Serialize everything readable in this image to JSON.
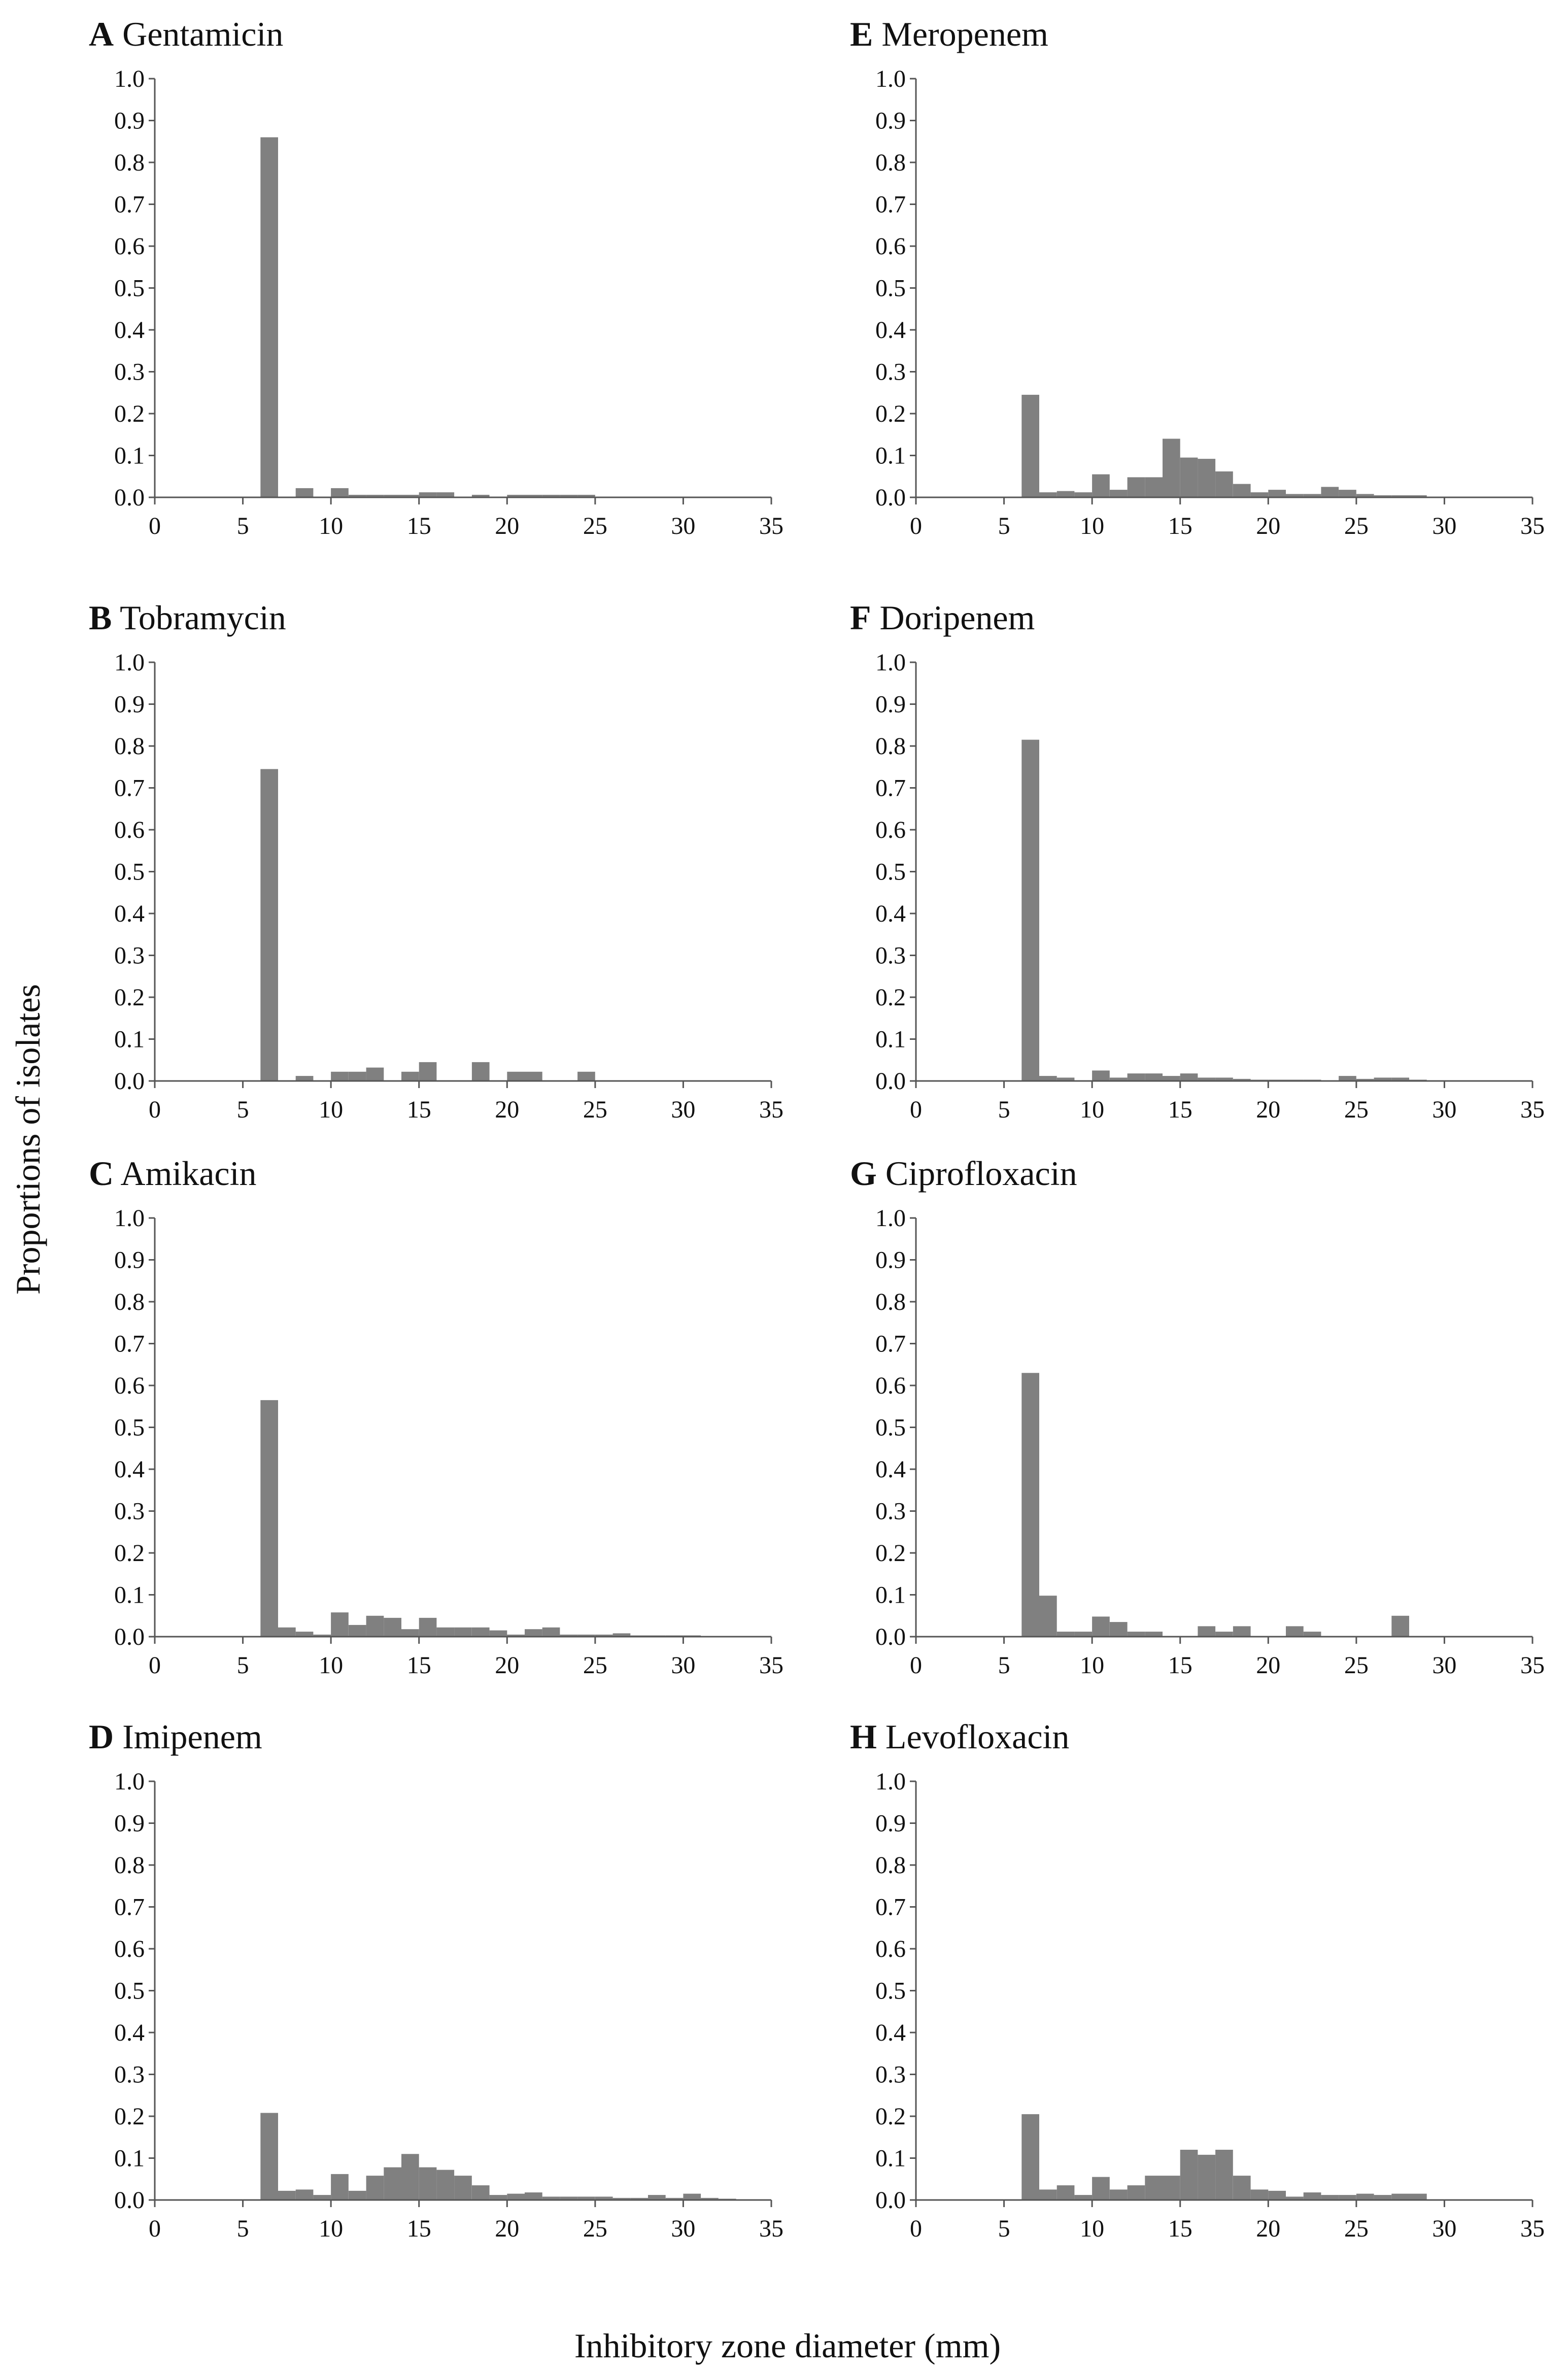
{
  "figure": {
    "y_axis_label": "Proportions of isolates",
    "x_axis_label": "Inhibitory zone diameter (mm)"
  },
  "style": {
    "bar_color": "#808080",
    "axis_color": "#555555",
    "text_color": "#111111"
  },
  "chart_data": [
    {
      "type": "bar",
      "letter": "A",
      "antibiotic": "Gentamicin",
      "xlim": [
        0,
        35
      ],
      "ylim": [
        0,
        1.0
      ],
      "xticks": [
        "0",
        "5",
        "10",
        "15",
        "20",
        "25",
        "30",
        "35"
      ],
      "yticks": [
        "0.0",
        "0.1",
        "0.2",
        "0.3",
        "0.4",
        "0.5",
        "0.6",
        "0.7",
        "0.8",
        "0.9",
        "1.0"
      ],
      "bin_width": 1,
      "bins": [
        [
          6,
          0.86
        ],
        [
          8,
          0.022
        ],
        [
          10,
          0.022
        ],
        [
          11,
          0.006
        ],
        [
          12,
          0.006
        ],
        [
          13,
          0.006
        ],
        [
          14,
          0.006
        ],
        [
          15,
          0.012
        ],
        [
          16,
          0.012
        ],
        [
          18,
          0.006
        ],
        [
          20,
          0.006
        ],
        [
          21,
          0.006
        ],
        [
          22,
          0.006
        ],
        [
          23,
          0.006
        ],
        [
          24,
          0.006
        ]
      ]
    },
    {
      "type": "bar",
      "letter": "E",
      "antibiotic": "Meropenem",
      "xlim": [
        0,
        35
      ],
      "ylim": [
        0,
        1.0
      ],
      "xticks": [
        "0",
        "5",
        "10",
        "15",
        "20",
        "25",
        "30",
        "35"
      ],
      "yticks": [
        "0.0",
        "0.1",
        "0.2",
        "0.3",
        "0.4",
        "0.5",
        "0.6",
        "0.7",
        "0.8",
        "0.9",
        "1.0"
      ],
      "bin_width": 1,
      "bins": [
        [
          6,
          0.245
        ],
        [
          7,
          0.012
        ],
        [
          8,
          0.015
        ],
        [
          9,
          0.012
        ],
        [
          10,
          0.055
        ],
        [
          11,
          0.018
        ],
        [
          12,
          0.048
        ],
        [
          13,
          0.048
        ],
        [
          14,
          0.14
        ],
        [
          15,
          0.095
        ],
        [
          16,
          0.092
        ],
        [
          17,
          0.062
        ],
        [
          18,
          0.032
        ],
        [
          19,
          0.012
        ],
        [
          20,
          0.018
        ],
        [
          21,
          0.008
        ],
        [
          22,
          0.008
        ],
        [
          23,
          0.025
        ],
        [
          24,
          0.018
        ],
        [
          25,
          0.008
        ],
        [
          26,
          0.005
        ],
        [
          27,
          0.005
        ],
        [
          28,
          0.005
        ]
      ]
    },
    {
      "type": "bar",
      "letter": "B",
      "antibiotic": "Tobramycin",
      "xlim": [
        0,
        35
      ],
      "ylim": [
        0,
        1.0
      ],
      "xticks": [
        "0",
        "5",
        "10",
        "15",
        "20",
        "25",
        "30",
        "35"
      ],
      "yticks": [
        "0.0",
        "0.1",
        "0.2",
        "0.3",
        "0.4",
        "0.5",
        "0.6",
        "0.7",
        "0.8",
        "0.9",
        "1.0"
      ],
      "bin_width": 1,
      "bins": [
        [
          6,
          0.745
        ],
        [
          8,
          0.012
        ],
        [
          10,
          0.022
        ],
        [
          11,
          0.022
        ],
        [
          12,
          0.032
        ],
        [
          14,
          0.022
        ],
        [
          15,
          0.045
        ],
        [
          18,
          0.045
        ],
        [
          20,
          0.022
        ],
        [
          21,
          0.022
        ],
        [
          24,
          0.022
        ]
      ]
    },
    {
      "type": "bar",
      "letter": "F",
      "antibiotic": "Doripenem",
      "xlim": [
        0,
        35
      ],
      "ylim": [
        0,
        1.0
      ],
      "xticks": [
        "0",
        "5",
        "10",
        "15",
        "20",
        "25",
        "30",
        "35"
      ],
      "yticks": [
        "0.0",
        "0.1",
        "0.2",
        "0.3",
        "0.4",
        "0.5",
        "0.6",
        "0.7",
        "0.8",
        "0.9",
        "1.0"
      ],
      "bin_width": 1,
      "bins": [
        [
          6,
          0.815
        ],
        [
          7,
          0.012
        ],
        [
          8,
          0.008
        ],
        [
          10,
          0.025
        ],
        [
          11,
          0.008
        ],
        [
          12,
          0.018
        ],
        [
          13,
          0.018
        ],
        [
          14,
          0.012
        ],
        [
          15,
          0.018
        ],
        [
          16,
          0.008
        ],
        [
          17,
          0.008
        ],
        [
          18,
          0.005
        ],
        [
          19,
          0.003
        ],
        [
          20,
          0.003
        ],
        [
          21,
          0.003
        ],
        [
          22,
          0.003
        ],
        [
          24,
          0.012
        ],
        [
          25,
          0.005
        ],
        [
          26,
          0.008
        ],
        [
          27,
          0.008
        ],
        [
          28,
          0.003
        ]
      ]
    },
    {
      "type": "bar",
      "letter": "C",
      "antibiotic": "Amikacin",
      "xlim": [
        0,
        35
      ],
      "ylim": [
        0,
        1.0
      ],
      "xticks": [
        "0",
        "5",
        "10",
        "15",
        "20",
        "25",
        "30",
        "35"
      ],
      "yticks": [
        "0.0",
        "0.1",
        "0.2",
        "0.3",
        "0.4",
        "0.5",
        "0.6",
        "0.7",
        "0.8",
        "0.9",
        "1.0"
      ],
      "bin_width": 1,
      "bins": [
        [
          6,
          0.565
        ],
        [
          7,
          0.022
        ],
        [
          8,
          0.012
        ],
        [
          9,
          0.005
        ],
        [
          10,
          0.058
        ],
        [
          11,
          0.028
        ],
        [
          12,
          0.05
        ],
        [
          13,
          0.045
        ],
        [
          14,
          0.018
        ],
        [
          15,
          0.045
        ],
        [
          16,
          0.022
        ],
        [
          17,
          0.022
        ],
        [
          18,
          0.022
        ],
        [
          19,
          0.015
        ],
        [
          20,
          0.005
        ],
        [
          21,
          0.018
        ],
        [
          22,
          0.022
        ],
        [
          23,
          0.005
        ],
        [
          24,
          0.005
        ],
        [
          25,
          0.005
        ],
        [
          26,
          0.008
        ],
        [
          27,
          0.003
        ],
        [
          28,
          0.003
        ],
        [
          29,
          0.003
        ],
        [
          30,
          0.003
        ]
      ]
    },
    {
      "type": "bar",
      "letter": "G",
      "antibiotic": "Ciprofloxacin",
      "xlim": [
        0,
        35
      ],
      "ylim": [
        0,
        1.0
      ],
      "xticks": [
        "0",
        "5",
        "10",
        "15",
        "20",
        "25",
        "30",
        "35"
      ],
      "yticks": [
        "0.0",
        "0.1",
        "0.2",
        "0.3",
        "0.4",
        "0.5",
        "0.6",
        "0.7",
        "0.8",
        "0.9",
        "1.0"
      ],
      "bin_width": 1,
      "bins": [
        [
          6,
          0.63
        ],
        [
          7,
          0.098
        ],
        [
          8,
          0.012
        ],
        [
          9,
          0.012
        ],
        [
          10,
          0.048
        ],
        [
          11,
          0.035
        ],
        [
          12,
          0.012
        ],
        [
          13,
          0.012
        ],
        [
          16,
          0.025
        ],
        [
          17,
          0.012
        ],
        [
          18,
          0.025
        ],
        [
          21,
          0.025
        ],
        [
          22,
          0.012
        ],
        [
          27,
          0.05
        ]
      ]
    },
    {
      "type": "bar",
      "letter": "D",
      "antibiotic": "Imipenem",
      "xlim": [
        0,
        35
      ],
      "ylim": [
        0,
        1.0
      ],
      "xticks": [
        "0",
        "5",
        "10",
        "15",
        "20",
        "25",
        "30",
        "35"
      ],
      "yticks": [
        "0.0",
        "0.1",
        "0.2",
        "0.3",
        "0.4",
        "0.5",
        "0.6",
        "0.7",
        "0.8",
        "0.9",
        "1.0"
      ],
      "bin_width": 1,
      "bins": [
        [
          6,
          0.208
        ],
        [
          7,
          0.022
        ],
        [
          8,
          0.025
        ],
        [
          9,
          0.012
        ],
        [
          10,
          0.062
        ],
        [
          11,
          0.022
        ],
        [
          12,
          0.058
        ],
        [
          13,
          0.078
        ],
        [
          14,
          0.11
        ],
        [
          15,
          0.078
        ],
        [
          16,
          0.072
        ],
        [
          17,
          0.058
        ],
        [
          18,
          0.035
        ],
        [
          19,
          0.012
        ],
        [
          20,
          0.015
        ],
        [
          21,
          0.018
        ],
        [
          22,
          0.008
        ],
        [
          23,
          0.008
        ],
        [
          24,
          0.008
        ],
        [
          25,
          0.008
        ],
        [
          26,
          0.005
        ],
        [
          27,
          0.005
        ],
        [
          28,
          0.012
        ],
        [
          29,
          0.005
        ],
        [
          30,
          0.015
        ],
        [
          31,
          0.005
        ],
        [
          32,
          0.003
        ]
      ]
    },
    {
      "type": "bar",
      "letter": "H",
      "antibiotic": "Levofloxacin",
      "xlim": [
        0,
        35
      ],
      "ylim": [
        0,
        1.0
      ],
      "xticks": [
        "0",
        "5",
        "10",
        "15",
        "20",
        "25",
        "30",
        "35"
      ],
      "yticks": [
        "0.0",
        "0.1",
        "0.2",
        "0.3",
        "0.4",
        "0.5",
        "0.6",
        "0.7",
        "0.8",
        "0.9",
        "1.0"
      ],
      "bin_width": 1,
      "bins": [
        [
          6,
          0.205
        ],
        [
          7,
          0.025
        ],
        [
          8,
          0.035
        ],
        [
          9,
          0.012
        ],
        [
          10,
          0.055
        ],
        [
          11,
          0.025
        ],
        [
          12,
          0.035
        ],
        [
          13,
          0.058
        ],
        [
          14,
          0.058
        ],
        [
          15,
          0.12
        ],
        [
          16,
          0.108
        ],
        [
          17,
          0.12
        ],
        [
          18,
          0.058
        ],
        [
          19,
          0.025
        ],
        [
          20,
          0.022
        ],
        [
          21,
          0.008
        ],
        [
          22,
          0.018
        ],
        [
          23,
          0.012
        ],
        [
          24,
          0.012
        ],
        [
          25,
          0.015
        ],
        [
          26,
          0.012
        ],
        [
          27,
          0.015
        ],
        [
          28,
          0.015
        ]
      ]
    }
  ]
}
